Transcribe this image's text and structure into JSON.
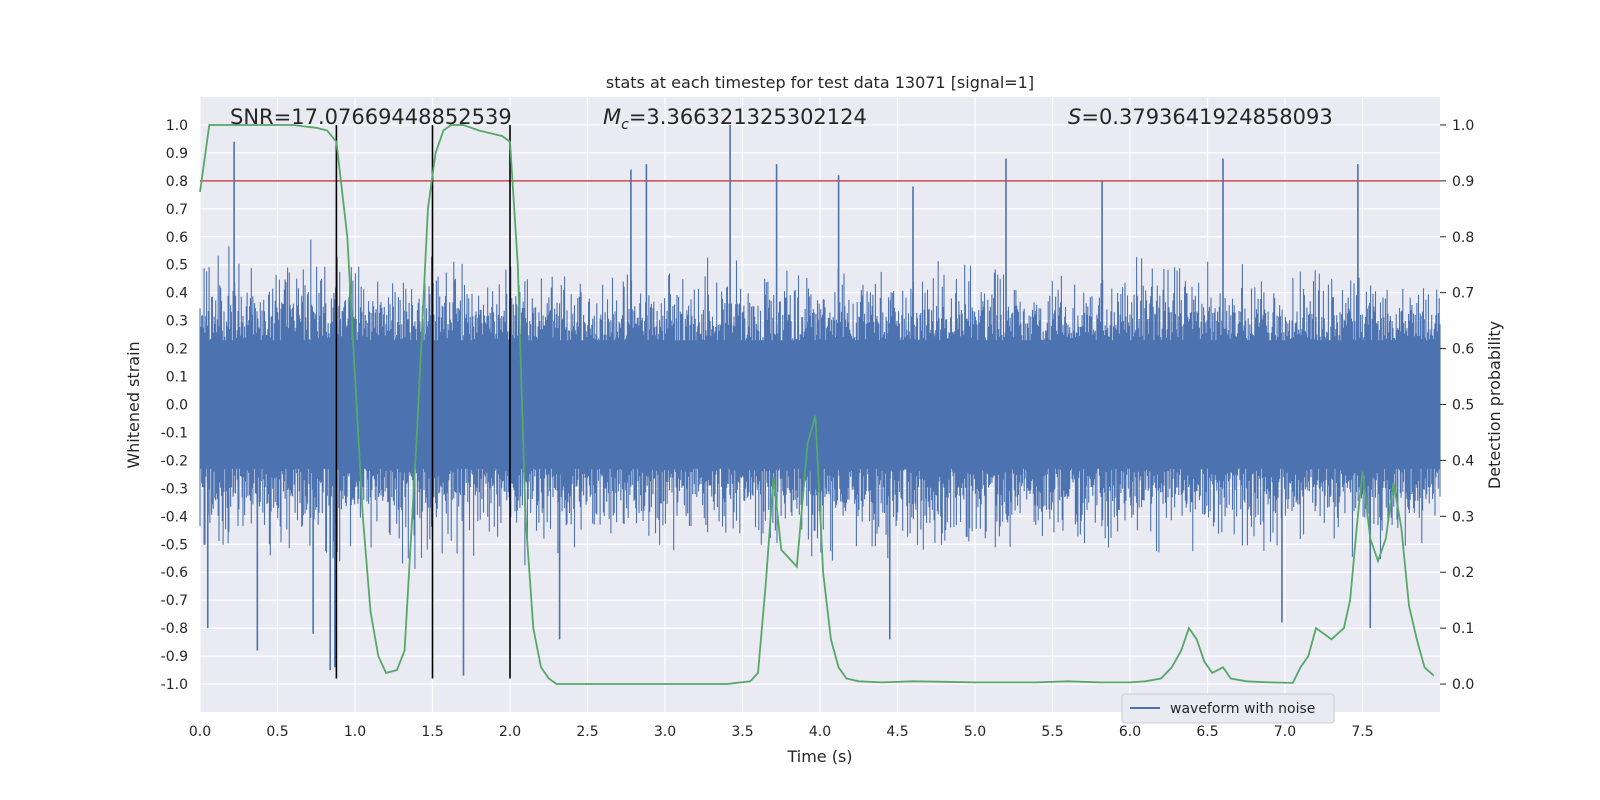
{
  "chart_data": {
    "type": "line",
    "title": "stats at each timestep for test data 13071 [signal=1]",
    "xlabel": "Time (s)",
    "ylabel_left": "Whitened strain",
    "ylabel_right": "Detection probability",
    "xlim": [
      0,
      8
    ],
    "ylim_left": [
      -1.1,
      1.1
    ],
    "ylim_right": [
      -0.05,
      1.05
    ],
    "x_ticks": [
      "0.0",
      "0.5",
      "1.0",
      "1.5",
      "2.0",
      "2.5",
      "3.0",
      "3.5",
      "4.0",
      "4.5",
      "5.0",
      "5.5",
      "6.0",
      "6.5",
      "7.0",
      "7.5"
    ],
    "x_tick_values": [
      0,
      0.5,
      1,
      1.5,
      2,
      2.5,
      3,
      3.5,
      4,
      4.5,
      5,
      5.5,
      6,
      6.5,
      7,
      7.5
    ],
    "y_left_ticks": [
      "1.0",
      "0.9",
      "0.8",
      "0.7",
      "0.6",
      "0.5",
      "0.4",
      "0.3",
      "0.2",
      "0.1",
      "0.0",
      "-0.1",
      "-0.2",
      "-0.3",
      "-0.4",
      "-0.5",
      "-0.6",
      "-0.7",
      "-0.8",
      "-0.9",
      "-1.0"
    ],
    "y_left_tick_values": [
      1.0,
      0.9,
      0.8,
      0.7,
      0.6,
      0.5,
      0.4,
      0.3,
      0.2,
      0.1,
      0.0,
      -0.1,
      -0.2,
      -0.3,
      -0.4,
      -0.5,
      -0.6,
      -0.7,
      -0.8,
      -0.9,
      -1.0
    ],
    "y_right_ticks": [
      "1.0",
      "0.9",
      "0.8",
      "0.7",
      "0.6",
      "0.5",
      "0.4",
      "0.3",
      "0.2",
      "0.1",
      "0.0"
    ],
    "y_right_tick_values": [
      1.0,
      0.9,
      0.8,
      0.7,
      0.6,
      0.5,
      0.4,
      0.3,
      0.2,
      0.1,
      0.0
    ],
    "annotations": {
      "snr": "SNR=17.07669448852539",
      "mc_symbol": "M",
      "mc_sub": "c",
      "mc_value": "=3.366321325302124",
      "s_symbol": "S",
      "s_value": "=0.3793641924858093"
    },
    "threshold": {
      "value": 0.9,
      "axis": "right",
      "color": "#c44e52"
    },
    "vertical_lines_x": [
      0.88,
      1.5,
      2.0
    ],
    "legend": {
      "placement": "lower-right",
      "entries": [
        "waveform with noise"
      ]
    },
    "grid": true,
    "colors": {
      "waveform": "#4c72b0",
      "probability": "#55a868",
      "vlines": "#000000",
      "background": "#eaeaf2"
    },
    "series": [
      {
        "name": "waveform with noise",
        "axis": "left",
        "style": "dense-noise",
        "envelope_upper": [
          [
            0.0,
            0.62
          ],
          [
            0.2,
            0.6
          ],
          [
            0.5,
            0.58
          ],
          [
            0.8,
            0.6
          ],
          [
            1.0,
            0.55
          ],
          [
            1.5,
            0.57
          ],
          [
            2.0,
            0.55
          ],
          [
            2.5,
            0.5
          ],
          [
            3.0,
            0.52
          ],
          [
            3.5,
            0.55
          ],
          [
            4.0,
            0.54
          ],
          [
            4.5,
            0.52
          ],
          [
            5.0,
            0.55
          ],
          [
            5.5,
            0.52
          ],
          [
            6.0,
            0.55
          ],
          [
            6.5,
            0.55
          ],
          [
            7.0,
            0.5
          ],
          [
            7.5,
            0.55
          ],
          [
            8.0,
            0.45
          ]
        ],
        "envelope_lower": [
          [
            0.0,
            -0.55
          ],
          [
            0.2,
            -0.55
          ],
          [
            0.5,
            -0.6
          ],
          [
            0.8,
            -0.62
          ],
          [
            1.0,
            -0.6
          ],
          [
            1.5,
            -0.62
          ],
          [
            2.0,
            -0.6
          ],
          [
            2.5,
            -0.55
          ],
          [
            3.0,
            -0.55
          ],
          [
            3.5,
            -0.55
          ],
          [
            4.0,
            -0.6
          ],
          [
            4.5,
            -0.6
          ],
          [
            5.0,
            -0.55
          ],
          [
            5.5,
            -0.55
          ],
          [
            6.0,
            -0.55
          ],
          [
            6.5,
            -0.6
          ],
          [
            7.0,
            -0.55
          ],
          [
            7.5,
            -0.6
          ],
          [
            8.0,
            -0.55
          ]
        ],
        "spikes": [
          [
            0.22,
            0.94
          ],
          [
            2.78,
            0.84
          ],
          [
            2.88,
            0.86
          ],
          [
            3.42,
            1.0
          ],
          [
            3.72,
            0.86
          ],
          [
            4.12,
            0.82
          ],
          [
            4.6,
            0.78
          ],
          [
            5.2,
            0.88
          ],
          [
            5.82,
            0.8
          ],
          [
            6.6,
            0.88
          ],
          [
            7.47,
            0.86
          ],
          [
            0.37,
            -0.88
          ],
          [
            0.84,
            -0.95
          ],
          [
            0.87,
            -0.94
          ],
          [
            1.7,
            -0.97
          ],
          [
            2.32,
            -0.84
          ],
          [
            4.45,
            -0.84
          ],
          [
            6.98,
            -0.78
          ],
          [
            7.55,
            -0.8
          ],
          [
            0.05,
            -0.8
          ],
          [
            0.73,
            -0.82
          ]
        ]
      },
      {
        "name": "",
        "axis": "right",
        "x": [
          0.0,
          0.06,
          0.15,
          0.25,
          0.4,
          0.6,
          0.75,
          0.82,
          0.88,
          0.95,
          1.0,
          1.05,
          1.1,
          1.15,
          1.2,
          1.27,
          1.32,
          1.4,
          1.47,
          1.52,
          1.57,
          1.62,
          1.7,
          1.8,
          1.95,
          2.0,
          2.05,
          2.1,
          2.15,
          2.2,
          2.25,
          2.3,
          2.4,
          2.6,
          2.8,
          3.0,
          3.2,
          3.4,
          3.55,
          3.6,
          3.65,
          3.7,
          3.75,
          3.85,
          3.92,
          3.97,
          4.02,
          4.07,
          4.12,
          4.17,
          4.25,
          4.4,
          4.6,
          4.8,
          5.0,
          5.2,
          5.4,
          5.6,
          5.8,
          6.0,
          6.1,
          6.2,
          6.27,
          6.33,
          6.38,
          6.43,
          6.48,
          6.53,
          6.6,
          6.65,
          6.75,
          6.9,
          7.05,
          7.1,
          7.15,
          7.2,
          7.25,
          7.3,
          7.38,
          7.42,
          7.47,
          7.5,
          7.55,
          7.6,
          7.65,
          7.7,
          7.75,
          7.8,
          7.85,
          7.9,
          7.96
        ],
        "values": [
          0.88,
          1.0,
          1.0,
          1.0,
          1.0,
          1.0,
          0.995,
          0.99,
          0.97,
          0.8,
          0.55,
          0.3,
          0.13,
          0.05,
          0.02,
          0.025,
          0.06,
          0.45,
          0.85,
          0.95,
          0.99,
          1.0,
          1.0,
          0.99,
          0.98,
          0.97,
          0.75,
          0.3,
          0.1,
          0.03,
          0.01,
          0.0,
          0.0,
          0.0,
          0.0,
          0.0,
          0.0,
          0.0,
          0.005,
          0.02,
          0.18,
          0.37,
          0.24,
          0.21,
          0.43,
          0.48,
          0.2,
          0.08,
          0.03,
          0.01,
          0.005,
          0.003,
          0.005,
          0.004,
          0.003,
          0.003,
          0.003,
          0.005,
          0.003,
          0.003,
          0.005,
          0.01,
          0.03,
          0.06,
          0.1,
          0.08,
          0.04,
          0.02,
          0.03,
          0.01,
          0.005,
          0.003,
          0.002,
          0.03,
          0.05,
          0.1,
          0.09,
          0.08,
          0.1,
          0.15,
          0.3,
          0.38,
          0.26,
          0.22,
          0.26,
          0.36,
          0.28,
          0.14,
          0.08,
          0.03,
          0.015
        ]
      }
    ]
  }
}
